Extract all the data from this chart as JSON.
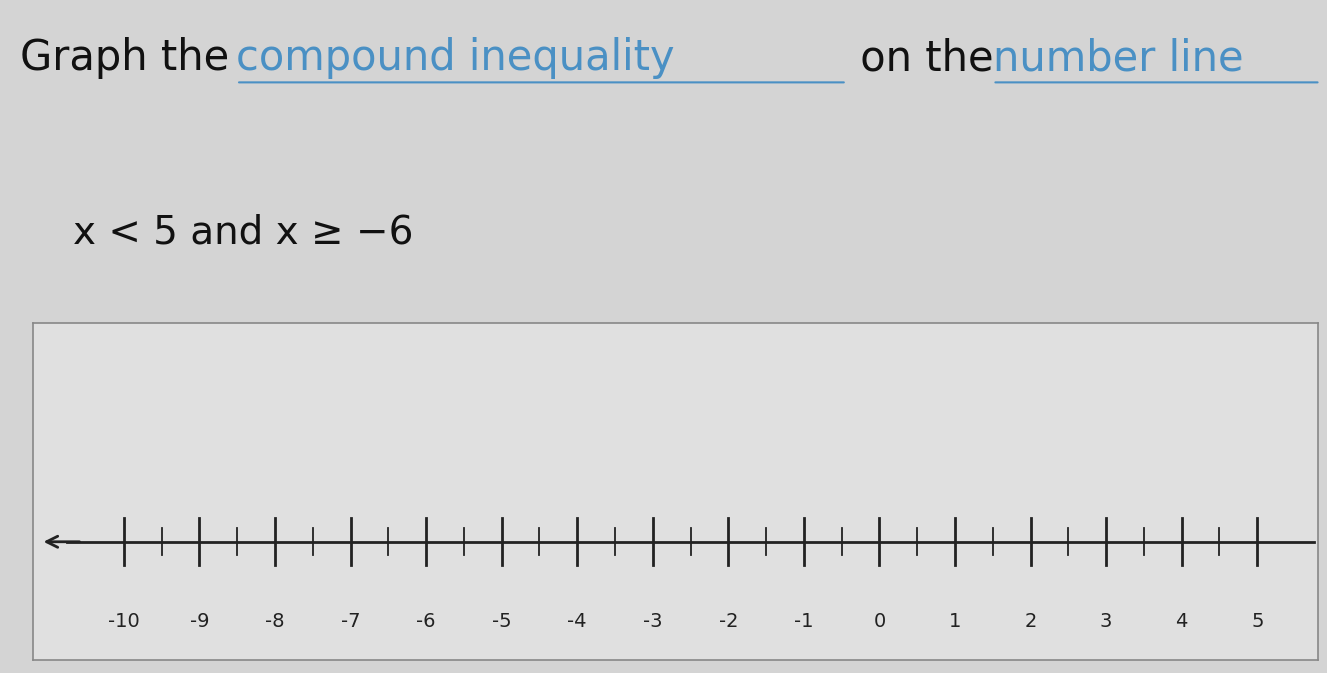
{
  "title_text": "Graph the ",
  "link_text1": "compound inequality",
  "middle_text": " on the ",
  "link_text2": "number line",
  "background_color": "#d4d4d4",
  "box_background": "#e0e0e0",
  "number_line_color": "#222222",
  "tick_labels": [
    -10,
    -9,
    -8,
    -7,
    -6,
    -5,
    -4,
    -3,
    -2,
    -1,
    0,
    1,
    2,
    3,
    4,
    5
  ],
  "x_min": -11.2,
  "x_max": 5.8,
  "link_color": "#4a90c4",
  "title_fontsize": 30,
  "inequality_fontsize": 28,
  "tick_fontsize": 14
}
